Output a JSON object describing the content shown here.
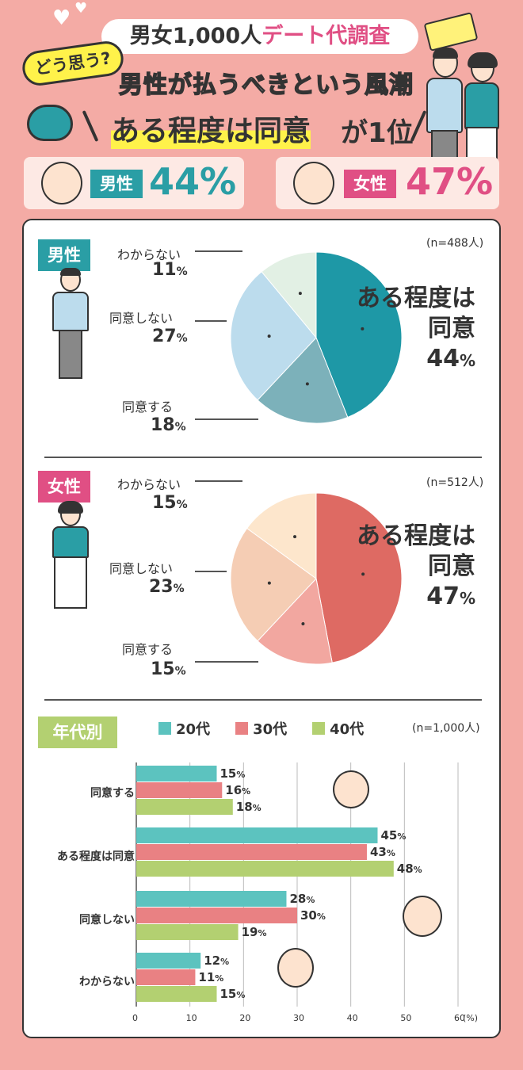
{
  "header": {
    "title_black": "男女1,000人",
    "title_pink": "デート代調査",
    "bubble": "どう思う?",
    "subtitle": "男性が払うべきという風潮",
    "rank_main": "ある程度は同意",
    "rank_suffix": "が1位"
  },
  "summary": {
    "man": {
      "label": "男性",
      "value": "44%"
    },
    "woman": {
      "label": "女性",
      "value": "47%"
    }
  },
  "colors": {
    "background": "#f4aba5",
    "teal": "#2a9ea5",
    "pink": "#e04f84",
    "man_main": "#1e98a6",
    "man_b": "#7cb1ba",
    "man_c": "#bcdced",
    "man_d": "#e2f0e4",
    "woman_main": "#de6a63",
    "woman_b": "#f2a7a0",
    "woman_c": "#f5cdb4",
    "woman_d": "#fde6cc",
    "bar_20": "#5cc3bf",
    "bar_30": "#e98183",
    "bar_40": "#b3d071",
    "section_man": "#2a9ea5",
    "section_woman": "#e04f84",
    "section_age": "#b3d071"
  },
  "chart_data": [
    {
      "type": "pie",
      "section": "男性",
      "n": "(n=488人)",
      "slices": [
        {
          "label": "ある程度は同意",
          "value": 44
        },
        {
          "label": "同意する",
          "value": 18
        },
        {
          "label": "同意しない",
          "value": 27
        },
        {
          "label": "わからない",
          "value": 11
        }
      ],
      "display": {
        "main_label_1": "ある程度は",
        "main_label_2": "同意",
        "main_val": "44",
        "agree_label": "同意する",
        "agree_val": "18",
        "disagree_label": "同意しない",
        "disagree_val": "27",
        "unknown_label": "わからない",
        "unknown_val": "11",
        "pct": "%"
      }
    },
    {
      "type": "pie",
      "section": "女性",
      "n": "(n=512人)",
      "slices": [
        {
          "label": "ある程度は同意",
          "value": 47
        },
        {
          "label": "同意する",
          "value": 15
        },
        {
          "label": "同意しない",
          "value": 23
        },
        {
          "label": "わからない",
          "value": 15
        }
      ],
      "display": {
        "main_label_1": "ある程度は",
        "main_label_2": "同意",
        "main_val": "47",
        "agree_label": "同意する",
        "agree_val": "15",
        "disagree_label": "同意しない",
        "disagree_val": "23",
        "unknown_label": "わからない",
        "unknown_val": "15",
        "pct": "%"
      }
    },
    {
      "type": "bar",
      "orientation": "horizontal",
      "section": "年代別",
      "n": "(n=1,000人)",
      "categories": [
        "同意する",
        "ある程度は同意",
        "同意しない",
        "わからない"
      ],
      "series": [
        {
          "name": "20代",
          "values": [
            15,
            45,
            28,
            12
          ]
        },
        {
          "name": "30代",
          "values": [
            16,
            43,
            30,
            11
          ]
        },
        {
          "name": "40代",
          "values": [
            18,
            48,
            19,
            15
          ]
        }
      ],
      "xlim": [
        0,
        60
      ],
      "ticks": [
        "0",
        "10",
        "20",
        "30",
        "40",
        "50",
        "60"
      ],
      "unit": "(%)",
      "pct": "%"
    }
  ]
}
